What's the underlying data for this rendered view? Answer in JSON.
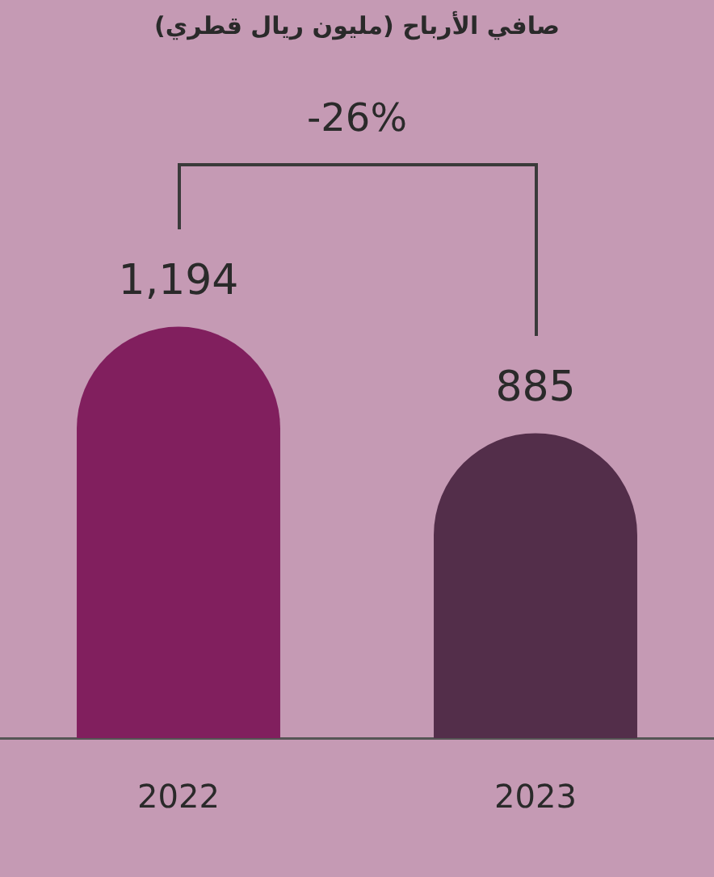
{
  "chart_data": {
    "type": "bar",
    "title": "صافي الأرباح (مليون ريال قطري)",
    "annotations": [
      "-26%"
    ],
    "categories": [
      "2022",
      "2023"
    ],
    "values": [
      1194,
      885
    ],
    "value_labels": [
      "1,194",
      "885"
    ],
    "colors": [
      "#811f5e",
      "#532e4a"
    ],
    "legend": false
  }
}
